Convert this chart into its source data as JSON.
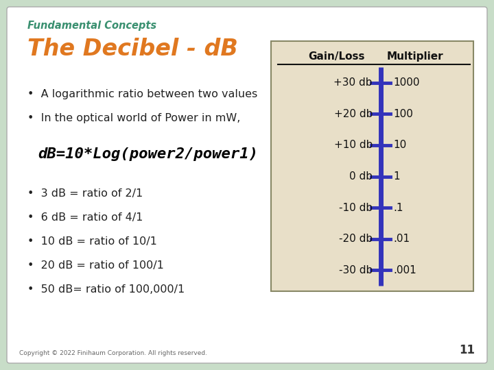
{
  "bg_color": "#c8ddc8",
  "slide_bg": "#ffffff",
  "subtitle": "Fundamental Concepts",
  "subtitle_color": "#3a9070",
  "title": "The Decibel - dB",
  "title_color": "#e07820",
  "bullets": [
    "A logarithmic ratio between two values",
    "In the optical world of Power in mW,"
  ],
  "formula": "dB=10*Log(power2/power1)",
  "formula_color": "#000000",
  "extra_bullets": [
    "3 dB = ratio of 2/1",
    "6 dB = ratio of 4/1",
    "10 dB = ratio of 10/1",
    "20 dB = ratio of 100/1",
    "50 dB= ratio of 100,000/1"
  ],
  "table_bg": "#e8dfc8",
  "table_border": "#888866",
  "gain_loss_col": "Gain/Loss",
  "multiplier_col": "Multiplier",
  "rows": [
    [
      "+30 db",
      "1000"
    ],
    [
      "+20 db",
      "100"
    ],
    [
      "+10 db",
      "10"
    ],
    [
      "0 db",
      "1"
    ],
    [
      "-10 db",
      ".1"
    ],
    [
      "-20 db",
      ".01"
    ],
    [
      "-30 db",
      ".001"
    ]
  ],
  "axis_line_color": "#3333bb",
  "tick_color": "#3333bb",
  "copyright": "Copyright © 2022 Finihaum Corporation. All rights reserved.",
  "page_number": "11"
}
